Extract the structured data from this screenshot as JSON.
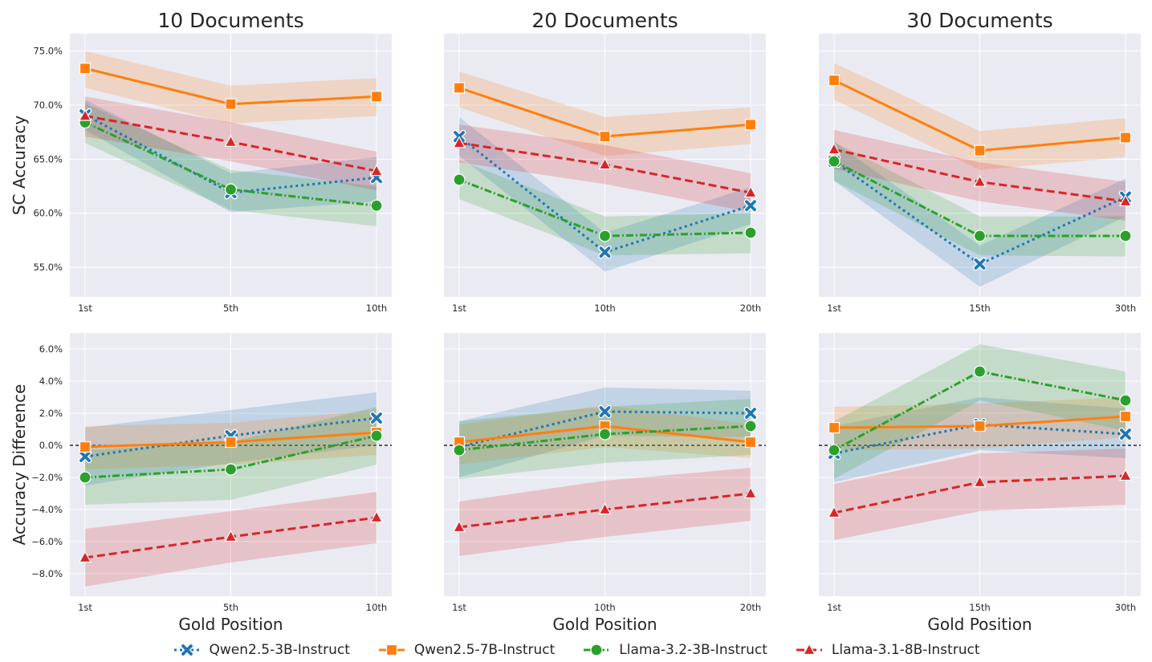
{
  "colors": {
    "qwen3b": "#1f77b4",
    "qwen7b": "#ff7f0e",
    "llama3b": "#2ca02c",
    "llama8b": "#d62728",
    "panel_bg": "#eaeaf2",
    "grid": "#ffffff",
    "text": "#262626"
  },
  "chart_data": [
    {
      "type": "line",
      "title": "10 Documents",
      "xlabel": "",
      "ylabel": "SC Accuracy",
      "categories": [
        "1st",
        "5th",
        "10th"
      ],
      "ylim": [
        0.5226,
        0.7661
      ],
      "grid": true,
      "yticks": [
        0.55,
        0.6,
        0.65,
        0.7,
        0.75
      ],
      "ytick_labels": [
        "55.0%",
        "60.0%",
        "65.0%",
        "70.0%",
        "75.0%"
      ],
      "series": [
        {
          "name": "Qwen2.5-3B-Instruct",
          "values": [
            0.691,
            0.619,
            0.633
          ],
          "lower": [
            0.677,
            0.601,
            0.611
          ],
          "upper": [
            0.705,
            0.637,
            0.652
          ]
        },
        {
          "name": "Qwen2.5-7B-Instruct",
          "values": [
            0.734,
            0.701,
            0.708
          ],
          "lower": [
            0.716,
            0.683,
            0.69
          ],
          "upper": [
            0.75,
            0.718,
            0.725
          ]
        },
        {
          "name": "Llama-3.2-3B-Instruct",
          "values": [
            0.684,
            0.622,
            0.607
          ],
          "lower": [
            0.665,
            0.603,
            0.588
          ],
          "upper": [
            0.702,
            0.64,
            0.625
          ]
        },
        {
          "name": "Llama-3.1-8B-Instruct",
          "values": [
            0.69,
            0.666,
            0.639
          ],
          "lower": [
            0.671,
            0.648,
            0.621
          ],
          "upper": [
            0.708,
            0.684,
            0.657
          ]
        }
      ]
    },
    {
      "type": "line",
      "title": "20 Documents",
      "xlabel": "",
      "ylabel": "",
      "categories": [
        "1st",
        "10th",
        "20th"
      ],
      "ylim": [
        0.5226,
        0.7661
      ],
      "grid": true,
      "yticks": [
        0.55,
        0.6,
        0.65,
        0.7,
        0.75
      ],
      "ytick_labels": [],
      "series": [
        {
          "name": "Qwen2.5-3B-Instruct",
          "values": [
            0.671,
            0.564,
            0.607
          ],
          "lower": [
            0.653,
            0.546,
            0.59
          ],
          "upper": [
            0.689,
            0.582,
            0.624
          ]
        },
        {
          "name": "Qwen2.5-7B-Instruct",
          "values": [
            0.716,
            0.671,
            0.682
          ],
          "lower": [
            0.698,
            0.653,
            0.664
          ],
          "upper": [
            0.731,
            0.689,
            0.698
          ]
        },
        {
          "name": "Llama-3.2-3B-Instruct",
          "values": [
            0.631,
            0.579,
            0.582
          ],
          "lower": [
            0.613,
            0.561,
            0.563
          ],
          "upper": [
            0.649,
            0.597,
            0.6
          ]
        },
        {
          "name": "Llama-3.1-8B-Instruct",
          "values": [
            0.665,
            0.645,
            0.619
          ],
          "lower": [
            0.647,
            0.627,
            0.601
          ],
          "upper": [
            0.682,
            0.663,
            0.637
          ]
        }
      ]
    },
    {
      "type": "line",
      "title": "30 Documents",
      "xlabel": "",
      "ylabel": "",
      "categories": [
        "1st",
        "15th",
        "30th"
      ],
      "ylim": [
        0.5226,
        0.7661
      ],
      "grid": true,
      "yticks": [
        0.55,
        0.6,
        0.65,
        0.7,
        0.75
      ],
      "ytick_labels": [],
      "series": [
        {
          "name": "Qwen2.5-3B-Instruct",
          "values": [
            0.648,
            0.553,
            0.615
          ],
          "lower": [
            0.63,
            0.532,
            0.597
          ],
          "upper": [
            0.666,
            0.57,
            0.632
          ]
        },
        {
          "name": "Qwen2.5-7B-Instruct",
          "values": [
            0.723,
            0.658,
            0.67
          ],
          "lower": [
            0.705,
            0.64,
            0.652
          ],
          "upper": [
            0.739,
            0.676,
            0.688
          ]
        },
        {
          "name": "Llama-3.2-3B-Instruct",
          "values": [
            0.648,
            0.579,
            0.579
          ],
          "lower": [
            0.63,
            0.561,
            0.56
          ],
          "upper": [
            0.666,
            0.597,
            0.597
          ]
        },
        {
          "name": "Llama-3.1-8B-Instruct",
          "values": [
            0.659,
            0.629,
            0.611
          ],
          "lower": [
            0.641,
            0.611,
            0.593
          ],
          "upper": [
            0.677,
            0.647,
            0.629
          ]
        }
      ]
    },
    {
      "type": "line",
      "title": "",
      "xlabel": "Gold Position",
      "ylabel": "Accuracy Difference",
      "categories": [
        "1st",
        "5th",
        "10th"
      ],
      "ylim": [
        -0.094,
        0.07
      ],
      "grid": true,
      "reference_line": 0,
      "yticks": [
        -0.08,
        -0.06,
        -0.04,
        -0.02,
        0.0,
        0.02,
        0.04,
        0.06
      ],
      "ytick_labels": [
        "−8.0%",
        "−6.0%",
        "−4.0%",
        "−2.0%",
        "0.0%",
        "2.0%",
        "4.0%",
        "6.0%"
      ],
      "series": [
        {
          "name": "Qwen2.5-3B-Instruct",
          "values": [
            -0.007,
            0.006,
            0.017
          ],
          "lower": [
            -0.025,
            -0.011,
            0.0
          ],
          "upper": [
            0.011,
            0.022,
            0.033
          ]
        },
        {
          "name": "Qwen2.5-7B-Instruct",
          "values": [
            -0.001,
            0.002,
            0.008
          ],
          "lower": [
            -0.015,
            -0.012,
            -0.006
          ],
          "upper": [
            0.012,
            0.014,
            0.022
          ]
        },
        {
          "name": "Llama-3.2-3B-Instruct",
          "values": [
            -0.02,
            -0.015,
            0.006
          ],
          "lower": [
            -0.037,
            -0.034,
            -0.012
          ],
          "upper": [
            -0.003,
            0.002,
            0.024
          ]
        },
        {
          "name": "Llama-3.1-8B-Instruct",
          "values": [
            -0.07,
            -0.057,
            -0.045
          ],
          "lower": [
            -0.088,
            -0.073,
            -0.061
          ],
          "upper": [
            -0.052,
            -0.041,
            -0.029
          ]
        }
      ]
    },
    {
      "type": "line",
      "title": "",
      "xlabel": "Gold Position",
      "ylabel": "",
      "categories": [
        "1st",
        "10th",
        "20th"
      ],
      "ylim": [
        -0.094,
        0.07
      ],
      "grid": true,
      "reference_line": 0,
      "yticks": [
        -0.08,
        -0.06,
        -0.04,
        -0.02,
        0.0,
        0.02,
        0.04,
        0.06
      ],
      "ytick_labels": [],
      "series": [
        {
          "name": "Qwen2.5-3B-Instruct",
          "values": [
            -0.001,
            0.021,
            0.02
          ],
          "lower": [
            -0.02,
            0.006,
            0.005
          ],
          "upper": [
            0.015,
            0.036,
            0.034
          ]
        },
        {
          "name": "Qwen2.5-7B-Instruct",
          "values": [
            0.002,
            0.012,
            0.002
          ],
          "lower": [
            -0.012,
            -0.001,
            -0.008
          ],
          "upper": [
            0.013,
            0.025,
            0.013
          ]
        },
        {
          "name": "Llama-3.2-3B-Instruct",
          "values": [
            -0.003,
            0.007,
            0.012
          ],
          "lower": [
            -0.021,
            -0.011,
            -0.006
          ],
          "upper": [
            0.015,
            0.024,
            0.029
          ]
        },
        {
          "name": "Llama-3.1-8B-Instruct",
          "values": [
            -0.051,
            -0.04,
            -0.03
          ],
          "lower": [
            -0.069,
            -0.057,
            -0.047
          ],
          "upper": [
            -0.035,
            -0.022,
            -0.014
          ]
        }
      ]
    },
    {
      "type": "line",
      "title": "",
      "xlabel": "Gold Position",
      "ylabel": "",
      "categories": [
        "1st",
        "15th",
        "30th"
      ],
      "ylim": [
        -0.094,
        0.07
      ],
      "grid": true,
      "reference_line": 0,
      "yticks": [
        -0.08,
        -0.06,
        -0.04,
        -0.02,
        0.0,
        0.02,
        0.04,
        0.06
      ],
      "ytick_labels": [],
      "series": [
        {
          "name": "Qwen2.5-3B-Instruct",
          "values": [
            -0.005,
            0.013,
            0.007
          ],
          "lower": [
            -0.023,
            -0.003,
            -0.008
          ],
          "upper": [
            0.012,
            0.03,
            0.023
          ]
        },
        {
          "name": "Qwen2.5-7B-Instruct",
          "values": [
            0.011,
            0.012,
            0.018
          ],
          "lower": [
            -0.003,
            -0.002,
            0.005
          ],
          "upper": [
            0.024,
            0.026,
            0.03
          ]
        },
        {
          "name": "Llama-3.2-3B-Instruct",
          "values": [
            -0.003,
            0.046,
            0.028
          ],
          "lower": [
            -0.021,
            0.028,
            0.009
          ],
          "upper": [
            0.015,
            0.063,
            0.046
          ]
        },
        {
          "name": "Llama-3.1-8B-Instruct",
          "values": [
            -0.042,
            -0.023,
            -0.019
          ],
          "lower": [
            -0.059,
            -0.041,
            -0.037
          ],
          "upper": [
            -0.024,
            -0.005,
            -0.002
          ]
        }
      ]
    }
  ],
  "legend": {
    "items": [
      {
        "label": "Qwen2.5-3B-Instruct",
        "marker": "x"
      },
      {
        "label": "Qwen2.5-7B-Instruct",
        "marker": "square"
      },
      {
        "label": "Llama-3.2-3B-Instruct",
        "marker": "circle"
      },
      {
        "label": "Llama-3.1-8B-Instruct",
        "marker": "triangle"
      }
    ]
  }
}
